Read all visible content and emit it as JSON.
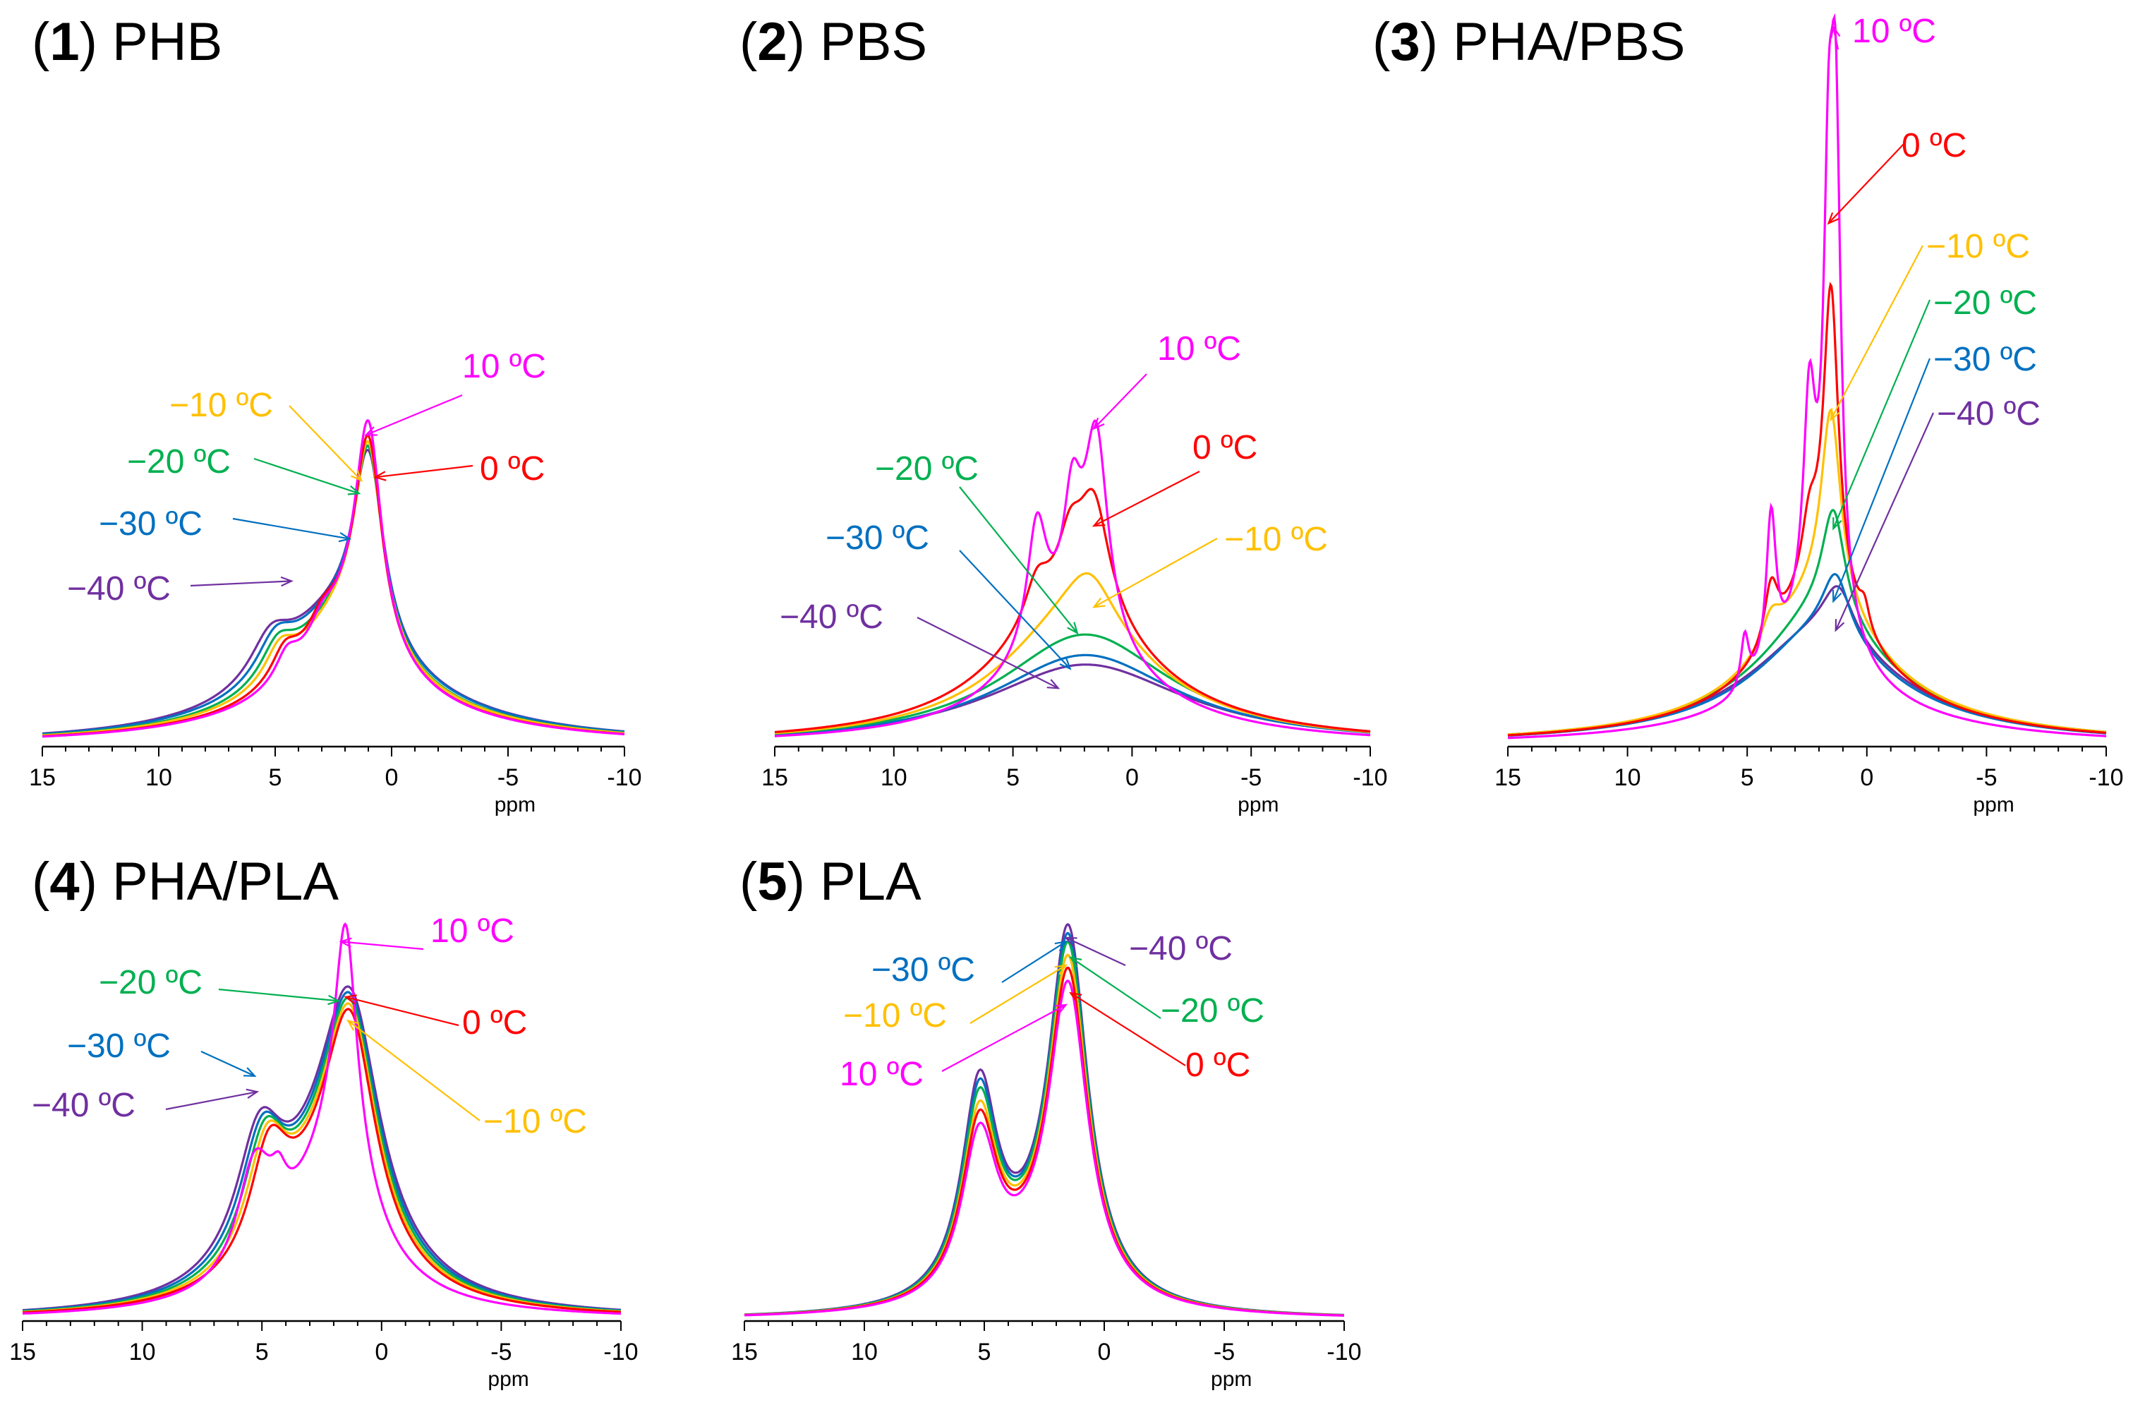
{
  "chart_data": [
    {
      "type": "line",
      "title_num": "1",
      "title_name": "PHB",
      "xlabel": "ppm",
      "xlim": [
        15,
        -10
      ],
      "x_ticks": [
        15,
        10,
        5,
        0,
        -5,
        -10
      ],
      "x_tick_labels": [
        "15",
        "10",
        "5",
        "0",
        "-5",
        "-10"
      ],
      "y_axis_shown": false,
      "series": [
        {
          "name": "10 ºC",
          "color": "#ff00ff",
          "base": 0.09,
          "peaks": [
            [
              1.0,
              0.62,
              0.7
            ],
            [
              3.0,
              0.05,
              0.6
            ],
            [
              4.5,
              0.07,
              0.6
            ]
          ],
          "wide": [
            2.0,
            0.22,
            2.4
          ]
        },
        {
          "name": "0 ºC",
          "color": "#ff0000",
          "base": 0.09,
          "peaks": [
            [
              1.0,
              0.58,
              0.72
            ],
            [
              3.0,
              0.05,
              0.65
            ],
            [
              4.6,
              0.08,
              0.7
            ]
          ],
          "wide": [
            2.1,
            0.22,
            2.5
          ]
        },
        {
          "name": "−10 ºC",
          "color": "#ffc000",
          "base": 0.1,
          "peaks": [
            [
              1.0,
              0.56,
              0.74
            ],
            [
              4.8,
              0.09,
              0.8
            ]
          ],
          "wide": [
            2.2,
            0.22,
            2.6
          ]
        },
        {
          "name": "−20 ºC",
          "color": "#00b050",
          "base": 0.1,
          "peaks": [
            [
              1.0,
              0.55,
              0.76
            ],
            [
              4.9,
              0.1,
              0.9
            ]
          ],
          "wide": [
            2.3,
            0.22,
            2.7
          ]
        },
        {
          "name": "−30 ºC",
          "color": "#0070c0",
          "base": 0.11,
          "peaks": [
            [
              1.0,
              0.54,
              0.78
            ],
            [
              5.0,
              0.11,
              1.0
            ]
          ],
          "wide": [
            2.4,
            0.22,
            2.8
          ]
        },
        {
          "name": "−40 ºC",
          "color": "#7030a0",
          "base": 0.11,
          "peaks": [
            [
              1.0,
              0.53,
              0.8
            ],
            [
              5.2,
              0.12,
              1.1
            ]
          ],
          "wide": [
            2.5,
            0.22,
            2.9
          ]
        }
      ],
      "annotations": [
        "10 ºC",
        "0 ºC",
        "−10 ºC",
        "−20 ºC",
        "−30 ºC",
        "−40 ºC"
      ]
    },
    {
      "type": "line",
      "title_num": "2",
      "title_name": "PBS",
      "xlabel": "ppm",
      "xlim": [
        15,
        -10
      ],
      "x_ticks": [
        15,
        10,
        5,
        0,
        -5,
        -10
      ],
      "x_tick_labels": [
        "15",
        "10",
        "5",
        "0",
        "-5",
        "-10"
      ],
      "y_axis_shown": false,
      "series": [
        {
          "name": "10 ºC",
          "color": "#ff00ff",
          "base": 0.06,
          "peaks": [
            [
              1.5,
              0.62,
              0.6
            ],
            [
              2.5,
              0.34,
              0.45
            ],
            [
              4.0,
              0.38,
              0.5
            ]
          ],
          "wide": [
            2.5,
            0.3,
            3.0
          ]
        },
        {
          "name": "0 ºC",
          "color": "#ff0000",
          "base": 0.06,
          "peaks": [
            [
              1.6,
              0.34,
              0.8
            ],
            [
              2.6,
              0.16,
              0.6
            ],
            [
              4.0,
              0.12,
              0.6
            ]
          ],
          "wide": [
            2.6,
            0.38,
            3.6
          ]
        },
        {
          "name": "−10 ºC",
          "color": "#ffc000",
          "base": 0.05,
          "peaks": [
            [
              1.8,
              0.16,
              1.3
            ]
          ],
          "wide": [
            2.4,
            0.34,
            3.8
          ]
        },
        {
          "name": "−20 ºC",
          "color": "#00b050",
          "base": 0.05,
          "peaks": [],
          "wide": [
            2.0,
            0.3,
            4.2
          ]
        },
        {
          "name": "−30 ºC",
          "color": "#0070c0",
          "base": 0.04,
          "peaks": [],
          "wide": [
            2.0,
            0.245,
            4.6
          ]
        },
        {
          "name": "−40 ºC",
          "color": "#7030a0",
          "base": 0.04,
          "peaks": [],
          "wide": [
            2.0,
            0.215,
            5.0
          ]
        }
      ],
      "annotations": [
        "10 ºC",
        "0 ºC",
        "−10 ºC",
        "−20 ºC",
        "−30 ºC",
        "−40 ºC"
      ]
    },
    {
      "type": "line",
      "title_num": "3",
      "title_name": "PHA/PBS",
      "xlabel": "ppm",
      "xlim": [
        15,
        -10
      ],
      "x_ticks": [
        15,
        10,
        5,
        0,
        -5,
        -10
      ],
      "x_tick_labels": [
        "15",
        "10",
        "5",
        "0",
        "-5",
        "-10"
      ],
      "y_axis_shown": false,
      "series": [
        {
          "name": "10 ºC",
          "color": "#ff00ff",
          "base": 0.05,
          "peaks": [
            [
              1.3,
              0.74,
              0.25
            ],
            [
              1.6,
              0.6,
              0.25
            ],
            [
              2.4,
              0.34,
              0.3
            ],
            [
              4.0,
              0.26,
              0.25
            ],
            [
              5.1,
              0.09,
              0.2
            ]
          ],
          "wide": [
            2.0,
            0.18,
            1.8
          ]
        },
        {
          "name": "0 ºC",
          "color": "#ff0000",
          "base": 0.06,
          "peaks": [
            [
              1.5,
              0.52,
              0.38
            ],
            [
              2.4,
              0.1,
              0.4
            ],
            [
              4.0,
              0.1,
              0.35
            ],
            [
              0.1,
              0.04,
              0.25
            ]
          ],
          "wide": [
            2.0,
            0.2,
            2.4
          ]
        },
        {
          "name": "−10 ºC",
          "color": "#ffc000",
          "base": 0.06,
          "peaks": [
            [
              1.5,
              0.33,
              0.5
            ],
            [
              4.0,
              0.05,
              0.5
            ]
          ],
          "wide": [
            2.0,
            0.19,
            2.7
          ]
        },
        {
          "name": "−20 ºC",
          "color": "#00b050",
          "base": 0.06,
          "peaks": [
            [
              1.4,
              0.19,
              0.6
            ]
          ],
          "wide": [
            2.0,
            0.16,
            3.0
          ]
        },
        {
          "name": "−30 ºC",
          "color": "#0070c0",
          "base": 0.05,
          "peaks": [
            [
              1.3,
              0.11,
              0.7
            ]
          ],
          "wide": [
            2.0,
            0.14,
            3.2
          ]
        },
        {
          "name": "−40 ºC",
          "color": "#7030a0",
          "base": 0.05,
          "peaks": [
            [
              1.2,
              0.09,
              0.8
            ]
          ],
          "wide": [
            2.0,
            0.14,
            3.4
          ]
        }
      ],
      "annotations": [
        "10 ºC",
        "0 ºC",
        "−10 ºC",
        "−20 ºC",
        "−30 ºC",
        "−40 ºC"
      ]
    },
    {
      "type": "line",
      "title_num": "4",
      "title_name": "PHA/PLA",
      "xlabel": "ppm",
      "xlim": [
        15,
        -10
      ],
      "x_ticks": [
        15,
        10,
        5,
        0,
        -5,
        -10
      ],
      "x_tick_labels": [
        "15",
        "10",
        "5",
        "0",
        "-5",
        "-10"
      ],
      "y_axis_shown": false,
      "series": [
        {
          "name": "10 ºC",
          "color": "#ff00ff",
          "base": 0.0,
          "peaks": [
            [
              1.5,
              0.48,
              0.55
            ],
            [
              1.6,
              0.22,
              1.4
            ],
            [
              4.3,
              0.07,
              0.4
            ],
            [
              5.3,
              0.24,
              0.9
            ]
          ],
          "wide": [
            2.5,
            0.2,
            2.6
          ]
        },
        {
          "name": "0 ºC",
          "color": "#ff0000",
          "base": 0.0,
          "peaks": [
            [
              1.3,
              0.5,
              1.3
            ],
            [
              4.7,
              0.24,
              1.0
            ]
          ],
          "wide": [
            2.5,
            0.21,
            2.7
          ]
        },
        {
          "name": "−10 ºC",
          "color": "#ffc000",
          "base": 0.0,
          "peaks": [
            [
              1.3,
              0.51,
              1.35
            ],
            [
              4.8,
              0.25,
              1.05
            ]
          ],
          "wide": [
            2.5,
            0.21,
            2.75
          ]
        },
        {
          "name": "−20 ºC",
          "color": "#00b050",
          "base": 0.0,
          "peaks": [
            [
              1.3,
              0.52,
              1.4
            ],
            [
              4.9,
              0.26,
              1.1
            ]
          ],
          "wide": [
            2.5,
            0.21,
            2.8
          ]
        },
        {
          "name": "−30 ºC",
          "color": "#0070c0",
          "base": 0.0,
          "peaks": [
            [
              1.3,
              0.53,
              1.45
            ],
            [
              5.0,
              0.27,
              1.15
            ]
          ],
          "wide": [
            2.5,
            0.21,
            2.85
          ]
        },
        {
          "name": "−40 ºC",
          "color": "#7030a0",
          "base": 0.0,
          "peaks": [
            [
              1.3,
              0.54,
              1.5
            ],
            [
              5.1,
              0.28,
              1.2
            ]
          ],
          "wide": [
            2.5,
            0.21,
            2.9
          ]
        }
      ],
      "annotations": [
        "10 ºC",
        "0 ºC",
        "−10 ºC",
        "−20 ºC",
        "−30 ºC",
        "−40 ºC"
      ]
    },
    {
      "type": "line",
      "title_num": "5",
      "title_name": "PLA",
      "xlabel": "ppm",
      "xlim": [
        15,
        -10
      ],
      "x_ticks": [
        15,
        10,
        5,
        0,
        -5,
        -10
      ],
      "x_tick_labels": [
        "15",
        "10",
        "5",
        "0",
        "-5",
        "-10"
      ],
      "y_axis_shown": false,
      "series": [
        {
          "name": "10 ºC",
          "color": "#ff00ff",
          "base": 0.0,
          "peaks": [
            [
              1.5,
              0.74,
              1.0
            ],
            [
              5.2,
              0.38,
              0.9
            ]
          ],
          "wide": [
            3.0,
            0.08,
            2.5
          ]
        },
        {
          "name": "0 ºC",
          "color": "#ff0000",
          "base": 0.0,
          "peaks": [
            [
              1.5,
              0.77,
              1.0
            ],
            [
              5.2,
              0.41,
              0.9
            ]
          ],
          "wide": [
            3.0,
            0.08,
            2.5
          ]
        },
        {
          "name": "−10 ºC",
          "color": "#ffc000",
          "base": 0.0,
          "peaks": [
            [
              1.5,
              0.8,
              1.0
            ],
            [
              5.2,
              0.43,
              0.9
            ]
          ],
          "wide": [
            3.0,
            0.08,
            2.5
          ]
        },
        {
          "name": "−20 ºC",
          "color": "#00b050",
          "base": 0.0,
          "peaks": [
            [
              1.5,
              0.83,
              1.0
            ],
            [
              5.2,
              0.46,
              0.9
            ]
          ],
          "wide": [
            3.0,
            0.08,
            2.5
          ]
        },
        {
          "name": "−30 ºC",
          "color": "#0070c0",
          "base": 0.0,
          "peaks": [
            [
              1.5,
              0.85,
              1.0
            ],
            [
              5.2,
              0.48,
              0.9
            ]
          ],
          "wide": [
            3.0,
            0.08,
            2.5
          ]
        },
        {
          "name": "−40 ºC",
          "color": "#7030a0",
          "base": 0.0,
          "peaks": [
            [
              1.5,
              0.87,
              1.0
            ],
            [
              5.2,
              0.5,
              0.9
            ]
          ],
          "wide": [
            3.0,
            0.08,
            2.5
          ]
        }
      ],
      "annotations": [
        "−40 ºC",
        "−30 ºC",
        "−20 ºC",
        "−10 ºC",
        "0 ºC",
        "10 ºC"
      ]
    }
  ]
}
